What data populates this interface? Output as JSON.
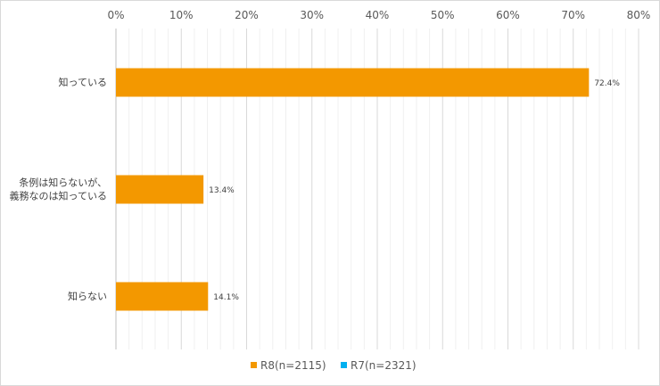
{
  "chart_data": {
    "type": "bar",
    "orientation": "horizontal",
    "title": "",
    "xlabel": "",
    "ylabel": "",
    "xlim": [
      0,
      80
    ],
    "x_ticks": [
      "0%",
      "10%",
      "20%",
      "30%",
      "40%",
      "50%",
      "60%",
      "70%",
      "80%"
    ],
    "x_tick_values": [
      0,
      10,
      20,
      30,
      40,
      50,
      60,
      70,
      80
    ],
    "categories": [
      [
        "知っている"
      ],
      [
        "条例は知らないが、",
        "義務なのは知っている"
      ],
      [
        "知らない"
      ]
    ],
    "series": [
      {
        "name": "R8(n=2115)",
        "color": "#f39800",
        "values": [
          72.4,
          13.4,
          14.1
        ],
        "labels": [
          "72.4%",
          "13.4%",
          "14.1%"
        ]
      },
      {
        "name": "R7(n=2321)",
        "color": "#00b0f0",
        "values": [
          null,
          null,
          null
        ],
        "labels": []
      }
    ],
    "grid": true,
    "minor_grid": true,
    "legend_position": "bottom"
  }
}
